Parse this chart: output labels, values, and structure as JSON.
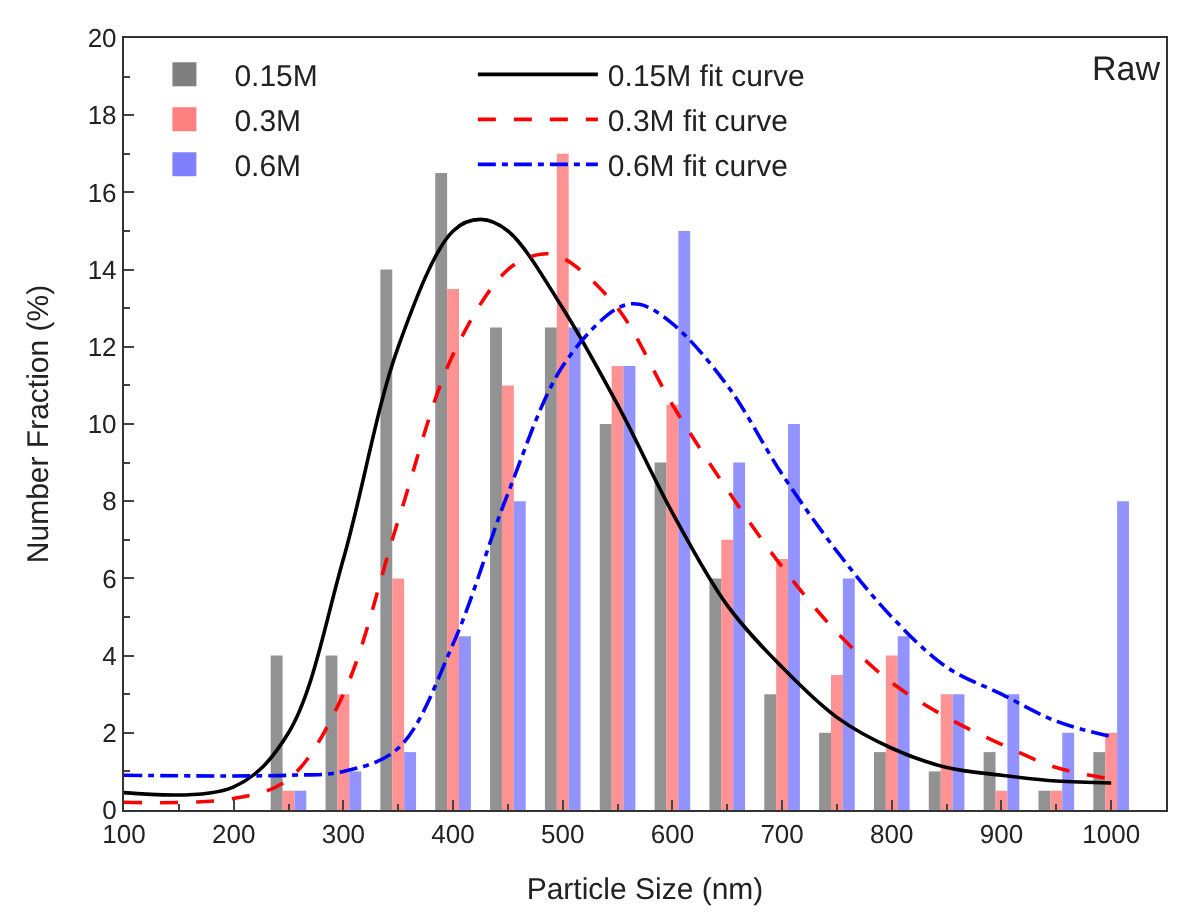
{
  "chart_data": {
    "type": "bar",
    "xlabel": "Particle Size (nm)",
    "ylabel": "Number Fraction (%)",
    "x": [
      250,
      300,
      350,
      400,
      450,
      500,
      550,
      600,
      650,
      700,
      750,
      800,
      850,
      900,
      950,
      1000
    ],
    "series": [
      {
        "name": "0.15M",
        "color": "#7f7f7f",
        "values": [
          4,
          4,
          14,
          16.5,
          12.5,
          12.5,
          10,
          9,
          6,
          3,
          2,
          1.5,
          1,
          1.5,
          0.5,
          1.5
        ]
      },
      {
        "name": "0.3M",
        "color": "#ff8080",
        "values": [
          0.5,
          3,
          6,
          13.5,
          11,
          17,
          11.5,
          10.5,
          7,
          6.5,
          3.5,
          4,
          3,
          0.5,
          0.5,
          2
        ]
      },
      {
        "name": "0.6M",
        "color": "#8080ff",
        "values": [
          0.5,
          1,
          1.5,
          4.5,
          8,
          12.5,
          11.5,
          15,
          9,
          10,
          6,
          4.5,
          3,
          3,
          2,
          8
        ]
      },
      {
        "name": "0.15M fit curve",
        "type": "line",
        "line_style": "solid",
        "color": "#000000",
        "x": [
          100,
          200,
          250,
          300,
          350,
          400,
          425,
          450,
          500,
          550,
          600,
          650,
          700,
          750,
          800,
          850,
          900,
          950,
          1000
        ],
        "values": [
          0.45,
          0.6,
          2,
          6.5,
          12,
          15,
          15.3,
          15,
          13,
          10.5,
          7.7,
          5.3,
          3.7,
          2.4,
          1.6,
          1.1,
          0.9,
          0.75,
          0.7
        ]
      },
      {
        "name": "0.3M fit curve",
        "type": "line",
        "line_style": "dashed",
        "color": "#ff0000",
        "x": [
          100,
          200,
          250,
          300,
          350,
          400,
          450,
          480,
          500,
          550,
          600,
          650,
          700,
          750,
          800,
          850,
          900,
          950,
          1000
        ],
        "values": [
          0.2,
          0.3,
          0.8,
          3,
          7.5,
          11.8,
          14,
          14.4,
          14.3,
          13,
          10.5,
          8.3,
          6.3,
          4.6,
          3.3,
          2.4,
          1.7,
          1.1,
          0.8
        ]
      },
      {
        "name": "0.6M fit curve",
        "type": "line",
        "line_style": "dashdot",
        "color": "#0000ff",
        "x": [
          100,
          250,
          300,
          350,
          400,
          450,
          500,
          550,
          570,
          600,
          650,
          700,
          750,
          800,
          850,
          900,
          950,
          1000
        ],
        "values": [
          0.9,
          0.9,
          1.0,
          1.6,
          4.3,
          8.2,
          11.5,
          13.0,
          13.1,
          12.6,
          11,
          8.7,
          6.7,
          5,
          3.7,
          3,
          2.3,
          1.9
        ]
      }
    ],
    "annotations": [
      "Raw"
    ],
    "xlim": [
      100,
      1050
    ],
    "xticks": [
      100,
      200,
      300,
      400,
      500,
      600,
      700,
      800,
      900,
      1000
    ],
    "ylim": [
      0,
      20
    ],
    "yticks": [
      0,
      2,
      4,
      6,
      8,
      10,
      12,
      14,
      16,
      18,
      20
    ],
    "legend": "top left"
  }
}
